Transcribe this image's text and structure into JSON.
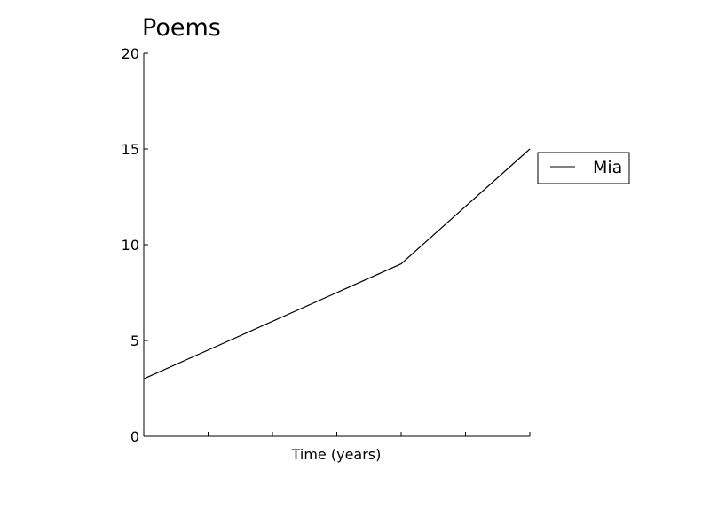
{
  "chart_data": {
    "type": "line",
    "title": "Poems",
    "xlabel": "Time (years)",
    "ylabel": "",
    "x_tick_count": 7,
    "xlim": [
      0,
      6
    ],
    "ylim": [
      0,
      20
    ],
    "y_ticks": [
      0,
      5,
      10,
      15,
      20
    ],
    "y_tick_labels": [
      "0",
      "5",
      "10",
      "15",
      "20"
    ],
    "grid": false,
    "legend_position": "outside-right",
    "series": [
      {
        "name": "Mia",
        "color": "#000000",
        "x": [
          0,
          4,
          6
        ],
        "y": [
          3,
          9,
          15
        ]
      }
    ]
  }
}
